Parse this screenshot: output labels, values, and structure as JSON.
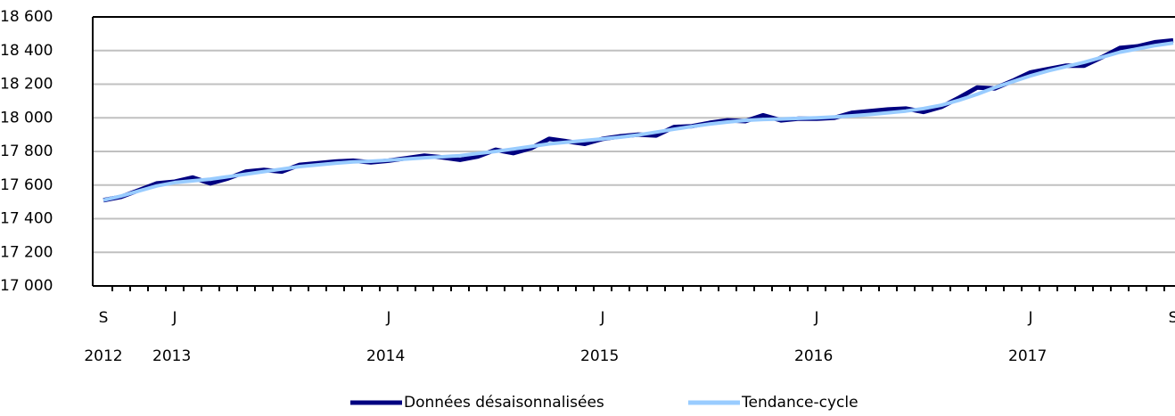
{
  "chart_data": {
    "type": "line",
    "categories": [
      "S",
      null,
      null,
      null,
      "J",
      null,
      null,
      null,
      null,
      null,
      null,
      null,
      null,
      null,
      null,
      null,
      "J",
      null,
      null,
      null,
      null,
      null,
      null,
      null,
      null,
      null,
      null,
      null,
      "J",
      null,
      null,
      null,
      null,
      null,
      null,
      null,
      null,
      null,
      null,
      null,
      "J",
      null,
      null,
      null,
      null,
      null,
      null,
      null,
      null,
      null,
      null,
      null,
      "J",
      null,
      null,
      null,
      null,
      null,
      null,
      null,
      "S"
    ],
    "years": [
      "2012",
      null,
      null,
      null,
      "2013",
      null,
      null,
      null,
      null,
      null,
      null,
      null,
      null,
      null,
      null,
      null,
      "2014",
      null,
      null,
      null,
      null,
      null,
      null,
      null,
      null,
      null,
      null,
      null,
      "2015",
      null,
      null,
      null,
      null,
      null,
      null,
      null,
      null,
      null,
      null,
      null,
      "2016",
      null,
      null,
      null,
      null,
      null,
      null,
      null,
      null,
      null,
      null,
      null,
      "2017",
      null,
      null,
      null,
      null,
      null,
      null,
      null,
      null
    ],
    "series": [
      {
        "name": "Données désaisonnalisées",
        "color": "#000080",
        "values": [
          17510,
          17530,
          17570,
          17610,
          17620,
          17645,
          17610,
          17640,
          17680,
          17690,
          17680,
          17720,
          17730,
          17740,
          17745,
          17735,
          17745,
          17760,
          17775,
          17765,
          17750,
          17770,
          17810,
          17790,
          17820,
          17875,
          17860,
          17845,
          17875,
          17890,
          17900,
          17895,
          17945,
          17950,
          17970,
          17985,
          17980,
          18015,
          17985,
          17995,
          17995,
          18000,
          18030,
          18040,
          18050,
          18055,
          18035,
          18065,
          18120,
          18180,
          18175,
          18220,
          18270,
          18290,
          18310,
          18310,
          18360,
          18415,
          18425,
          18450,
          18460
        ]
      },
      {
        "name": "Tendance-cycle",
        "color": "#99ccff",
        "values": [
          17510,
          17535,
          17565,
          17595,
          17615,
          17625,
          17635,
          17650,
          17665,
          17680,
          17695,
          17710,
          17720,
          17730,
          17738,
          17742,
          17748,
          17755,
          17762,
          17768,
          17775,
          17788,
          17800,
          17815,
          17830,
          17845,
          17855,
          17865,
          17875,
          17885,
          17898,
          17915,
          17932,
          17948,
          17963,
          17975,
          17985,
          17990,
          17993,
          17997,
          18000,
          18005,
          18012,
          18020,
          18030,
          18040,
          18055,
          18075,
          18105,
          18140,
          18180,
          18215,
          18250,
          18280,
          18305,
          18330,
          18360,
          18390,
          18410,
          18430,
          18445
        ]
      }
    ],
    "ylim": [
      17000,
      18600
    ],
    "yticks": [
      {
        "value": 17000,
        "label": "17 000"
      },
      {
        "value": 17200,
        "label": "17 200"
      },
      {
        "value": 17400,
        "label": "17 400"
      },
      {
        "value": 17600,
        "label": "17 600"
      },
      {
        "value": 17800,
        "label": "17 800"
      },
      {
        "value": 18000,
        "label": "18 000"
      },
      {
        "value": 18200,
        "label": "18 200"
      },
      {
        "value": 18400,
        "label": "18 400"
      },
      {
        "value": 18600,
        "label": "18 600"
      }
    ],
    "grid": true,
    "legend": "bottom"
  }
}
